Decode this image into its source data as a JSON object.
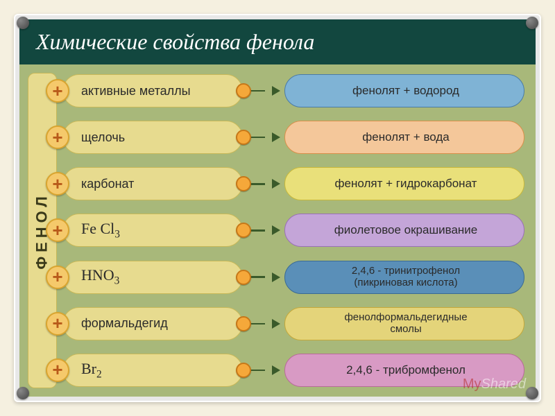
{
  "title": "Химические свойства фенола",
  "left_label": "ФЕНОЛ",
  "plus_symbol": "+",
  "reagent_color": {
    "bg": "#e7db8f",
    "border": "#c8b858"
  },
  "arrow_color": "#3a5a2a",
  "rows": [
    {
      "reagent": "активные металлы",
      "reagent_html": "активные металлы",
      "product": "фенолят + водород",
      "product_bg": "#7fb3d5",
      "product_border": "#4a7ba6"
    },
    {
      "reagent": "щелочь",
      "reagent_html": "щелочь",
      "product": "фенолят + вода",
      "product_bg": "#f4c79a",
      "product_border": "#d98f4a"
    },
    {
      "reagent": "карбонат",
      "reagent_html": "карбонат",
      "product": "фенолят + гидрокарбонат",
      "product_bg": "#e9e07a",
      "product_border": "#c8b83a"
    },
    {
      "reagent": "FeCl3",
      "reagent_html": "<span class='formula'>Fe Cl<span class='sub'>3</span></span>",
      "product": "фиолетовое окрашивание",
      "product_bg": "#c4a5d8",
      "product_border": "#9a6fb8"
    },
    {
      "reagent": "HNO3",
      "reagent_html": "<span class='formula'>HNO<span class='sub'>3</span></span>",
      "product": "2,4,6 - тринитрофенол (пикриновая кислота)",
      "product_html": "2,4,6 - тринитрофенол<br>(пикриновая кислота)",
      "two_line": true,
      "product_bg": "#5a8fb8",
      "product_border": "#3a6a94"
    },
    {
      "reagent": "формальдегид",
      "reagent_html": "формальдегид",
      "product": "фенолформальдегидные смолы",
      "product_html": "фенолформальдегидные<br>смолы",
      "two_line": true,
      "product_bg": "#e4d47a",
      "product_border": "#c4a83a"
    },
    {
      "reagent": "Br2",
      "reagent_html": "<span class='formula'>Br<span class='sub'>2</span></span>",
      "product": "2,4,6 - трибромфенол",
      "product_bg": "#d89ac4",
      "product_border": "#b86a9a"
    }
  ],
  "watermark": {
    "my": "My",
    "shared": "Shared"
  }
}
